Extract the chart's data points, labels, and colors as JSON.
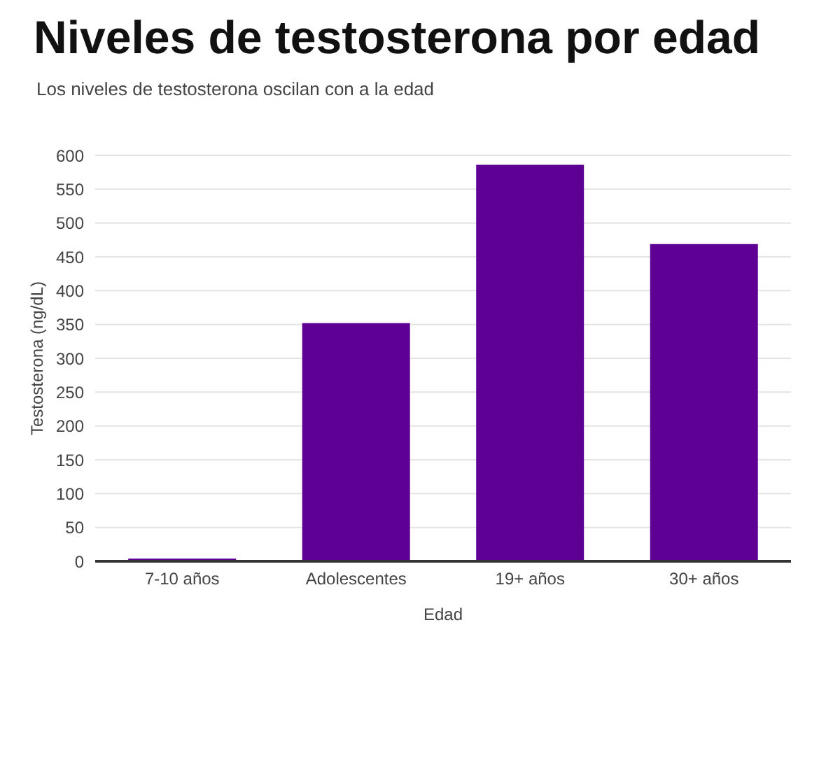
{
  "chart_data": {
    "type": "bar",
    "title": "Niveles de testosterona por edad",
    "subtitle": "Los niveles de testosterona oscilan con a la edad",
    "xlabel": "Edad",
    "ylabel": "Testosterona (ng/dL)",
    "categories": [
      "7-10 años",
      "Adolescentes",
      "19+ años",
      "30+ años"
    ],
    "values": [
      4,
      352,
      586,
      469
    ],
    "color": "#5f0095",
    "ylim": [
      0,
      600
    ],
    "yticks": [
      0,
      50,
      100,
      150,
      200,
      250,
      300,
      350,
      400,
      450,
      500,
      550,
      600
    ],
    "grid": "y"
  }
}
